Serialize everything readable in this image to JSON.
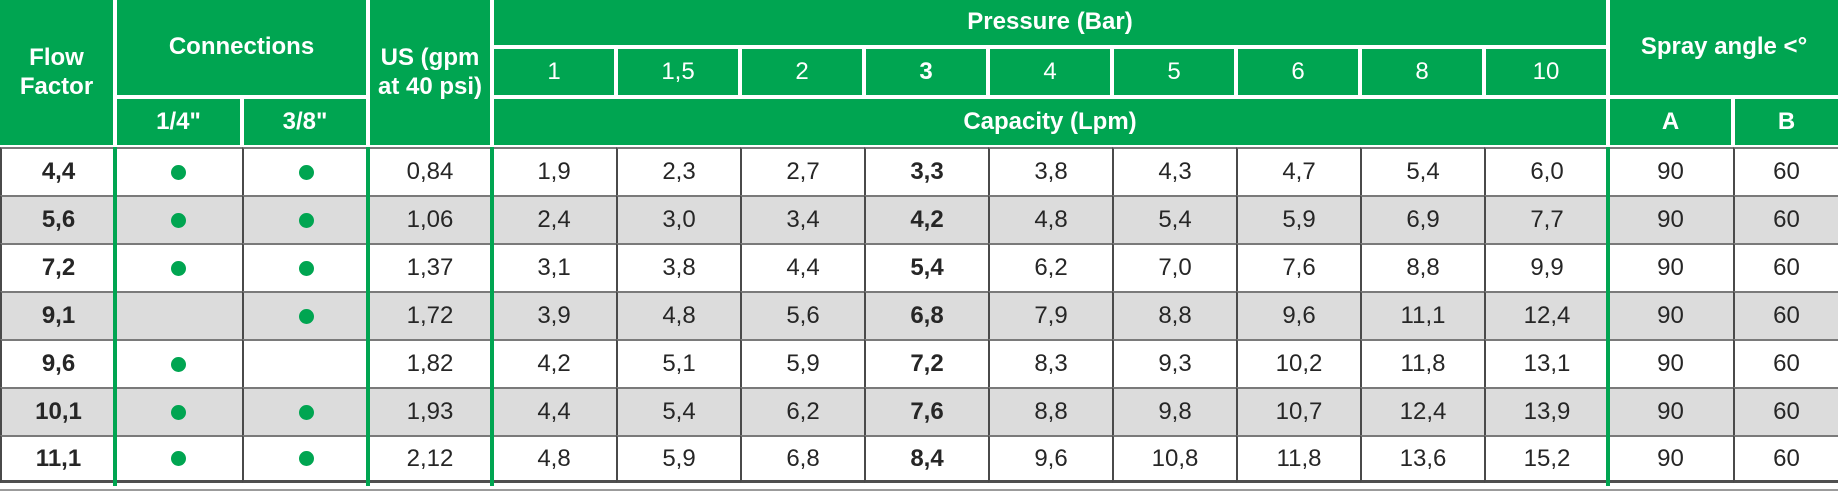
{
  "colors": {
    "green": "#00A551",
    "row_alt": "#DCDCDC",
    "border_v": "#4A4A4A",
    "border_h": "#7A7A7A",
    "text": "#262626"
  },
  "table": {
    "header": {
      "flow_factor": "Flow Factor",
      "connections": "Connections",
      "size_small": "1/4\"",
      "size_large": "3/8\"",
      "us_gpm": "US (gpm at 40 psi)",
      "pressure_title": "Pressure (Bar)",
      "pressure_values": [
        "1",
        "1,5",
        "2",
        "3",
        "4",
        "5",
        "6",
        "8",
        "10"
      ],
      "bold_pressure_index": 3,
      "capacity_title": "Capacity (Lpm)",
      "spray_angle_title": "Spray angle <°",
      "spray_col_a": "A",
      "spray_col_b": "B"
    },
    "rows": [
      {
        "flow_factor": "4,4",
        "conn_14": true,
        "conn_38": true,
        "us_gpm": "0,84",
        "capacities": [
          "1,9",
          "2,3",
          "2,7",
          "3,3",
          "3,8",
          "4,3",
          "4,7",
          "5,4",
          "6,0"
        ],
        "spray_a": "90",
        "spray_b": "60"
      },
      {
        "flow_factor": "5,6",
        "conn_14": true,
        "conn_38": true,
        "us_gpm": "1,06",
        "capacities": [
          "2,4",
          "3,0",
          "3,4",
          "4,2",
          "4,8",
          "5,4",
          "5,9",
          "6,9",
          "7,7"
        ],
        "spray_a": "90",
        "spray_b": "60"
      },
      {
        "flow_factor": "7,2",
        "conn_14": true,
        "conn_38": true,
        "us_gpm": "1,37",
        "capacities": [
          "3,1",
          "3,8",
          "4,4",
          "5,4",
          "6,2",
          "7,0",
          "7,6",
          "8,8",
          "9,9"
        ],
        "spray_a": "90",
        "spray_b": "60"
      },
      {
        "flow_factor": "9,1",
        "conn_14": false,
        "conn_38": true,
        "us_gpm": "1,72",
        "capacities": [
          "3,9",
          "4,8",
          "5,6",
          "6,8",
          "7,9",
          "8,8",
          "9,6",
          "11,1",
          "12,4"
        ],
        "spray_a": "90",
        "spray_b": "60"
      },
      {
        "flow_factor": "9,6",
        "conn_14": true,
        "conn_38": false,
        "us_gpm": "1,82",
        "capacities": [
          "4,2",
          "5,1",
          "5,9",
          "7,2",
          "8,3",
          "9,3",
          "10,2",
          "11,8",
          "13,1"
        ],
        "spray_a": "90",
        "spray_b": "60"
      },
      {
        "flow_factor": "10,1",
        "conn_14": true,
        "conn_38": true,
        "us_gpm": "1,93",
        "capacities": [
          "4,4",
          "5,4",
          "6,2",
          "7,6",
          "8,8",
          "9,8",
          "10,7",
          "12,4",
          "13,9"
        ],
        "spray_a": "90",
        "spray_b": "60"
      },
      {
        "flow_factor": "11,1",
        "conn_14": true,
        "conn_38": true,
        "us_gpm": "2,12",
        "capacities": [
          "4,8",
          "5,9",
          "6,8",
          "8,4",
          "9,6",
          "10,8",
          "11,8",
          "13,6",
          "15,2"
        ],
        "spray_a": "90",
        "spray_b": "60"
      }
    ]
  }
}
